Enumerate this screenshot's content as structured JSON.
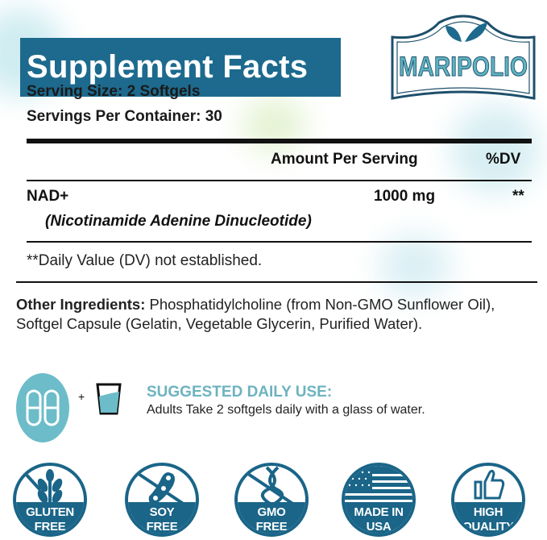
{
  "brand": {
    "logo_text": "MARIPOLIO",
    "color": "#1d6a8e"
  },
  "title": "Supplement Facts",
  "serving_size": "Serving Size: 2 Softgels",
  "servings_per_container": "Servings Per Container: 30",
  "table": {
    "headers": {
      "amount": "Amount Per Serving",
      "dv": "%DV"
    },
    "rows": [
      {
        "name": "NAD+",
        "subname": "(Nicotinamide Adenine Dinucleotide)",
        "amount": "1000 mg",
        "dv": "**"
      }
    ],
    "footnote": "**Daily Value (DV) not established."
  },
  "other_ingredients": {
    "label": "Other Ingredients:",
    "text": " Phosphatidylcholine (from Non-GMO Sunflower Oil), Softgel Capsule (Gelatin, Vegetable Glycerin, Purified Water)."
  },
  "suggested_use": {
    "plus": "+",
    "heading": "SUGGESTED DAILY USE:",
    "text": "Adults Take 2 softgels daily with a glass of water.",
    "accent": "#5fb3c0"
  },
  "badges": [
    {
      "icon": "wheat-icon",
      "line1": "GLUTEN",
      "line2": "FREE"
    },
    {
      "icon": "soybean-icon",
      "line1": "SOY",
      "line2": "FREE"
    },
    {
      "icon": "dna-icon",
      "line1": "GMO",
      "line2": "FREE"
    },
    {
      "icon": "us-flag-icon",
      "line1": "MADE IN",
      "line2": "USA"
    },
    {
      "icon": "thumbs-up-icon",
      "line1": "HIGH",
      "line2": "QUALITY"
    }
  ]
}
